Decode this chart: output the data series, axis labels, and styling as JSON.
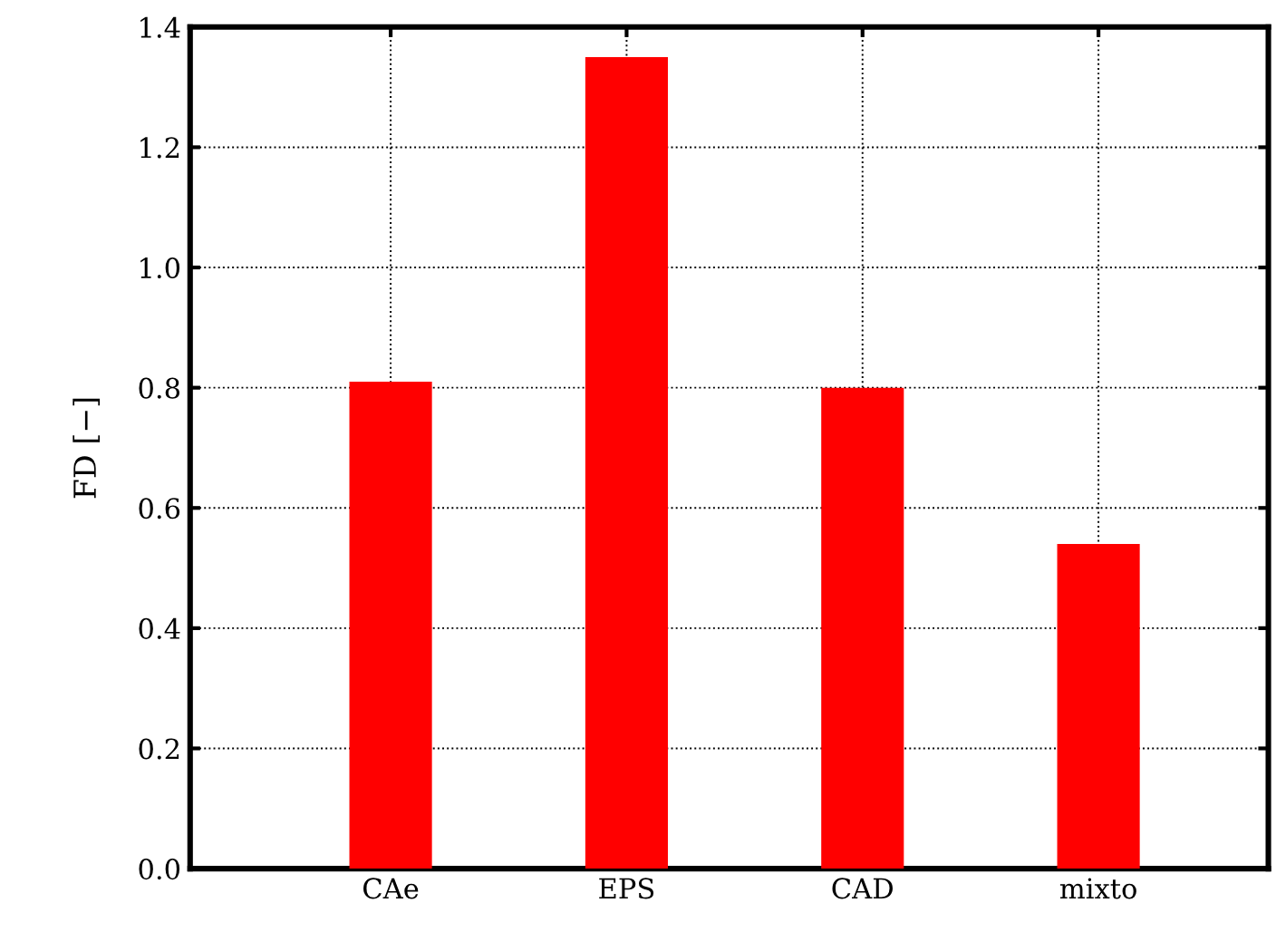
{
  "chart_data": {
    "type": "bar",
    "ylabel": "FD [−]",
    "categories": [
      "CAe",
      "EPS",
      "CAD",
      "mixto"
    ],
    "values": [
      0.81,
      1.35,
      0.8,
      0.54
    ],
    "color": "#ff0000",
    "ylim": [
      0,
      1.4
    ],
    "yticks": [
      {
        "value": 0,
        "label": "0.0"
      },
      0.2,
      0.4,
      0.6,
      0.8,
      {
        "value": 1.0,
        "label": "1.0"
      },
      1.2,
      1.4
    ],
    "grid": true,
    "legend": false
  }
}
